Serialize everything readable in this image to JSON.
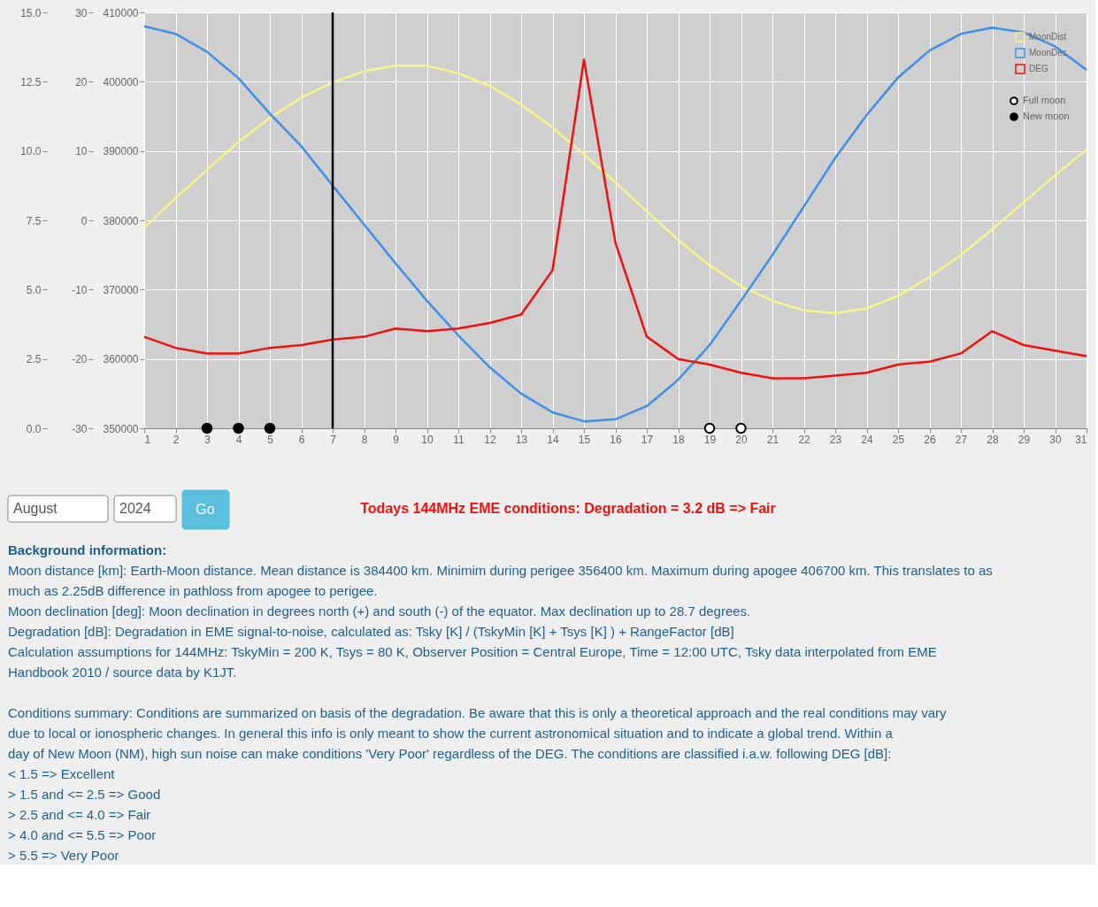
{
  "chart_data": {
    "type": "line",
    "x": [
      1,
      2,
      3,
      4,
      5,
      6,
      7,
      8,
      9,
      10,
      11,
      12,
      13,
      14,
      15,
      16,
      17,
      18,
      19,
      20,
      21,
      22,
      23,
      24,
      25,
      26,
      27,
      28,
      29,
      30,
      31
    ],
    "xlim": [
      1,
      31
    ],
    "xticks": [
      1,
      2,
      3,
      4,
      5,
      6,
      7,
      8,
      9,
      10,
      11,
      12,
      13,
      14,
      15,
      16,
      17,
      18,
      19,
      20,
      21,
      22,
      23,
      24,
      25,
      26,
      27,
      28,
      29,
      30,
      31
    ],
    "ylim": [
      0,
      15
    ],
    "yticks": [
      {
        "value": 0,
        "label": "0.0"
      },
      {
        "value": 2.5,
        "label": "2.5"
      },
      {
        "value": 5,
        "label": "5.0"
      },
      {
        "value": 7.5,
        "label": "7.5"
      },
      {
        "value": 10,
        "label": "10.0"
      },
      {
        "value": 12.5,
        "label": "12.5"
      },
      {
        "value": 15,
        "label": "15.0"
      }
    ],
    "y2lim": [
      -30,
      30
    ],
    "y2ticks": [
      -30,
      -20,
      -10,
      0,
      10,
      20,
      30
    ],
    "y3lim": [
      350000,
      410000
    ],
    "y3ticks": [
      350000,
      360000,
      370000,
      380000,
      390000,
      400000,
      410000
    ],
    "series": [
      {
        "name": "MoonDist",
        "color": "#f5f58a",
        "axis": "y3",
        "values": [
          379000,
          383200,
          387300,
          391300,
          394800,
          397700,
          399900,
          401500,
          402300,
          402300,
          401200,
          399400,
          396700,
          393400,
          389500,
          385500,
          381300,
          377200,
          373500,
          370500,
          368400,
          367000,
          366600,
          367300,
          369100,
          371800,
          375000,
          378700,
          382600,
          386500,
          390200
        ]
      },
      {
        "name": "MoonDec",
        "color": "#3d8fe8",
        "axis": "y2",
        "values": [
          28.0,
          26.9,
          24.3,
          20.5,
          15.4,
          10.7,
          5.0,
          -0.6,
          -6.2,
          -11.6,
          -16.6,
          -21.2,
          -25.0,
          -27.7,
          -29.0,
          -28.7,
          -26.8,
          -23.0,
          -18.0,
          -11.6,
          -5.0,
          2.0,
          9.0,
          15.2,
          20.6,
          24.5,
          26.9,
          27.8,
          27.1,
          25.1,
          21.7
        ]
      },
      {
        "name": "DEG",
        "color": "#ee1111",
        "values": [
          3.3,
          2.9,
          2.7,
          2.7,
          2.9,
          3.0,
          3.2,
          3.3,
          3.6,
          3.5,
          3.6,
          3.8,
          4.1,
          5.7,
          13.3,
          6.7,
          3.3,
          2.5,
          2.3,
          2.0,
          1.8,
          1.8,
          1.9,
          2.0,
          2.3,
          2.4,
          2.7,
          3.5,
          3.0,
          2.8,
          2.6
        ]
      },
      {
        "name": "Full moon",
        "type": "scatter",
        "marker": "circle",
        "color": "#ffffff",
        "x": [
          19,
          20
        ],
        "values": [
          0,
          0
        ]
      },
      {
        "name": "New moon",
        "type": "scatter",
        "marker": "circle",
        "color": "#000000",
        "x": [
          3,
          4,
          5
        ],
        "values": [
          0,
          0,
          0
        ]
      }
    ],
    "ref_lines": [
      {
        "axis": "x",
        "value": 7,
        "color": "#000000"
      }
    ],
    "legend": "top right",
    "grid": true,
    "line_style": "solid",
    "annotations": [
      "August",
      "2024",
      "Go",
      "Todays 144MHz EME conditions: Degradation = 3.2 dB => Fair",
      "Background information:",
      "Moon distance [km]: Earth-Moon distance. Mean distance is 384400 km. Minimim during perigee 356400 km. Maximum during apogee 406700 km. This translates to as much as 2.25dB difference in pathloss from apogee to perigee.",
      "Moon declination [deg]: Moon declination in degrees north (+) and south (-) of the equator. Max declination up to 28.7 degrees.",
      "Degradation [dB]: Degradation in EME signal-to-noise, calculated as: Tsky [K] / (TskyMin [K] + Tsys [K] ) + RangeFactor [dB]",
      "Calculation assumptions for 144MHz: TskyMin = 200 K, Tsys = 80 K, Observer Position = Central Europe, Time = 12:00 UTC, Tsky data interpolated from EME Handbook 2010 / source data by K1JT.",
      "Conditions summary: Conditions are summarized on basis of the degradation. Be aware that this is only a theoretical approach and the real conditions may vary due to local or ionospheric changes. In general this info is only meant to show the current astronomical situation and to indicate a global trend. Within a day of New Moon (NM), high sun noise can make conditions 'Very Poor' regardless of the DEG. The conditions are classified i.a.w. following DEG [dB]:",
      "< 1.5 => Excellent",
      "> 1.5 and <= 2.5 => Good",
      "> 2.5 and <= 4.0 => Fair",
      "> 4.0 and <= 5.5 => Poor",
      "> 5.5 => Very Poor"
    ]
  }
}
